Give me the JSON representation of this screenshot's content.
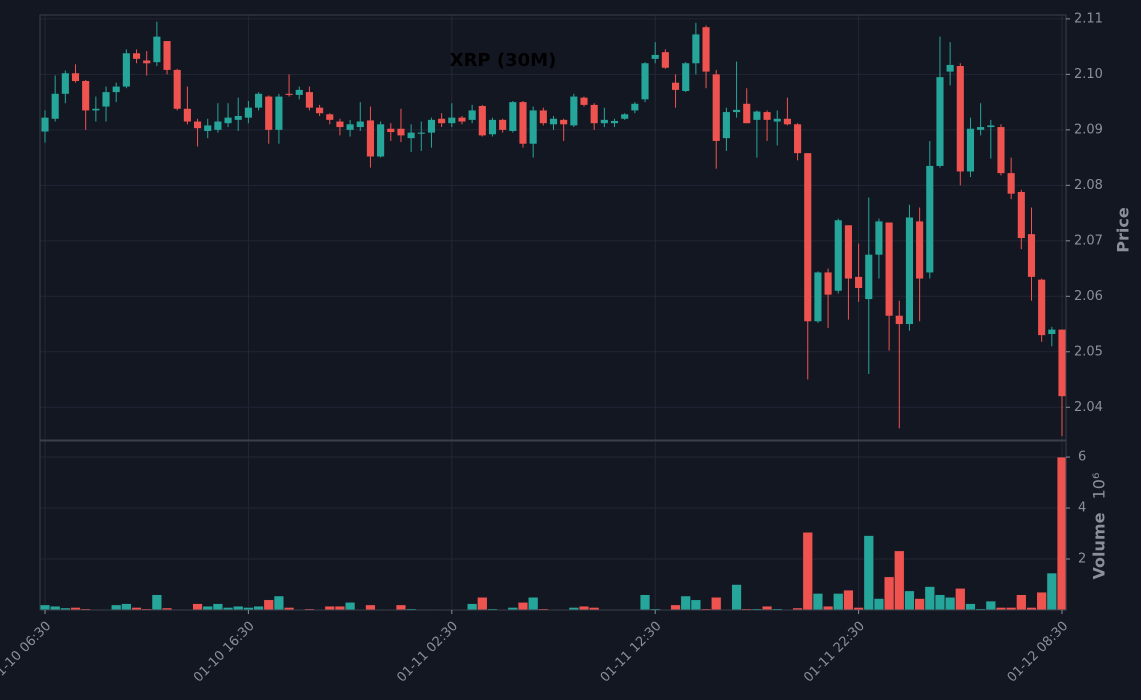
{
  "chart_data": {
    "type": "candlestick",
    "title": "XRP (30M)",
    "ylabel": "Price",
    "y2label": "Volume",
    "y2label_scale": "10⁶",
    "up_color": "#26a69a",
    "down_color": "#ef5350",
    "grid": true,
    "x": [
      "01-10 06:30",
      "01-10 07:00",
      "01-10 07:30",
      "01-10 08:00",
      "01-10 08:30",
      "01-10 09:00",
      "01-10 09:30",
      "01-10 10:00",
      "01-10 10:30",
      "01-10 11:00",
      "01-10 11:30",
      "01-10 12:00",
      "01-10 12:30",
      "01-10 13:00",
      "01-10 13:30",
      "01-10 14:00",
      "01-10 14:30",
      "01-10 15:00",
      "01-10 15:30",
      "01-10 16:00",
      "01-10 16:30",
      "01-10 17:00",
      "01-10 17:30",
      "01-10 18:00",
      "01-10 18:30",
      "01-10 19:00",
      "01-10 19:30",
      "01-10 20:00",
      "01-10 20:30",
      "01-10 21:00",
      "01-10 21:30",
      "01-10 22:00",
      "01-10 22:30",
      "01-10 23:00",
      "01-10 23:30",
      "01-11 00:00",
      "01-11 00:30",
      "01-11 01:00",
      "01-11 01:30",
      "01-11 02:00",
      "01-11 02:30",
      "01-11 03:00",
      "01-11 03:30",
      "01-11 04:00",
      "01-11 04:30",
      "01-11 05:00",
      "01-11 05:30",
      "01-11 06:00",
      "01-11 06:30",
      "01-11 07:00",
      "01-11 07:30",
      "01-11 08:00",
      "01-11 08:30",
      "01-11 09:00",
      "01-11 09:30",
      "01-11 10:00",
      "01-11 10:30",
      "01-11 11:00",
      "01-11 11:30",
      "01-11 12:00",
      "01-11 12:30",
      "01-11 13:00",
      "01-11 13:30",
      "01-11 14:00",
      "01-11 14:30",
      "01-11 15:00",
      "01-11 15:30",
      "01-11 16:00",
      "01-11 16:30",
      "01-11 17:00",
      "01-11 17:30",
      "01-11 18:00",
      "01-11 18:30",
      "01-11 19:00",
      "01-11 19:30",
      "01-11 20:00",
      "01-11 20:30",
      "01-11 21:00",
      "01-11 21:30",
      "01-11 22:00",
      "01-11 22:30",
      "01-11 23:00",
      "01-11 23:30",
      "01-12 00:00",
      "01-12 00:30",
      "01-12 01:00",
      "01-12 01:30",
      "01-12 02:00",
      "01-12 02:30",
      "01-12 03:00",
      "01-12 03:30",
      "01-12 04:00",
      "01-12 04:30",
      "01-12 05:00",
      "01-12 05:30",
      "01-12 06:00",
      "01-12 06:30",
      "01-12 07:00",
      "01-12 07:30",
      "01-12 08:00",
      "01-12 08:30"
    ],
    "xticks": [
      "01-10 06:30",
      "01-10 16:30",
      "01-11 02:30",
      "01-11 12:30",
      "01-11 22:30",
      "01-12 08:30"
    ],
    "open": [
      2.0897,
      2.092,
      2.0965,
      2.1002,
      2.0988,
      2.0935,
      2.0942,
      2.0968,
      2.0978,
      2.1038,
      2.1025,
      2.1022,
      2.106,
      2.1008,
      2.0938,
      2.0915,
      2.0898,
      2.09,
      2.0912,
      2.0918,
      2.0922,
      2.094,
      2.096,
      2.09,
      2.0965,
      2.0963,
      2.0968,
      2.094,
      2.0928,
      2.0915,
      2.09,
      2.0905,
      2.0917,
      2.0852,
      2.0902,
      2.0902,
      2.0885,
      2.0893,
      2.0895,
      2.092,
      2.0912,
      2.0922,
      2.0918,
      2.0943,
      2.0892,
      2.0918,
      2.0898,
      2.095,
      2.0875,
      2.0935,
      2.091,
      2.0918,
      2.0908,
      2.0958,
      2.0945,
      2.0912,
      2.0912,
      2.092,
      2.0935,
      2.0955,
      2.1028,
      2.104,
      2.0985,
      2.097,
      2.102,
      2.1085,
      2.1,
      2.0885,
      2.0932,
      2.0947,
      2.0918,
      2.0932,
      2.0915,
      2.092,
      2.091,
      2.0858,
      2.0555,
      2.0643,
      2.061,
      2.0728,
      2.0635,
      2.0595,
      2.0675,
      2.0733,
      2.0565,
      2.055,
      2.0735,
      2.0643,
      2.0835,
      2.1005,
      2.1015,
      2.0825,
      2.09,
      2.0905,
      2.0905,
      2.0822,
      2.0788,
      2.0712,
      2.063,
      2.0532,
      2.054
    ],
    "high": [
      2.0935,
      2.0998,
      2.1007,
      2.1018,
      2.099,
      2.096,
      2.0978,
      2.0985,
      2.1045,
      2.1045,
      2.1042,
      2.1095,
      2.106,
      2.101,
      2.0978,
      2.092,
      2.092,
      2.0948,
      2.0948,
      2.0958,
      2.0952,
      2.0968,
      2.0962,
      2.0965,
      2.1,
      2.0978,
      2.0978,
      2.0945,
      2.093,
      2.092,
      2.0918,
      2.095,
      2.0942,
      2.0915,
      2.0912,
      2.0938,
      2.091,
      2.0915,
      2.0922,
      2.093,
      2.0948,
      2.0925,
      2.0945,
      2.0945,
      2.0922,
      2.092,
      2.0952,
      2.0952,
      2.0942,
      2.094,
      2.0925,
      2.092,
      2.0965,
      2.096,
      2.0948,
      2.094,
      2.092,
      2.093,
      2.095,
      2.1022,
      2.1058,
      2.1045,
      2.1,
      2.1022,
      2.1093,
      2.1088,
      2.1008,
      2.094,
      2.1023,
      2.0975,
      2.0935,
      2.0935,
      2.0935,
      2.0958,
      2.0912,
      2.0858,
      2.0645,
      2.065,
      2.074,
      2.0728,
      2.0695,
      2.0778,
      2.074,
      2.0733,
      2.0592,
      2.0765,
      2.076,
      2.088,
      2.1068,
      2.1058,
      2.102,
      2.0922,
      2.0948,
      2.0918,
      2.091,
      2.085,
      2.0792,
      2.076,
      2.0632,
      2.0545,
      2.054
    ],
    "low": [
      2.0877,
      2.0915,
      2.0948,
      2.0985,
      2.09,
      2.0915,
      2.0915,
      2.095,
      2.0975,
      2.102,
      2.0998,
      2.1015,
      2.1,
      2.0935,
      2.091,
      2.087,
      2.0885,
      2.0895,
      2.0905,
      2.0898,
      2.0912,
      2.0935,
      2.0875,
      2.0875,
      2.096,
      2.0955,
      2.0935,
      2.0925,
      2.091,
      2.089,
      2.0888,
      2.0898,
      2.0832,
      2.085,
      2.088,
      2.0878,
      2.086,
      2.0862,
      2.0868,
      2.0905,
      2.0905,
      2.091,
      2.0912,
      2.0888,
      2.0888,
      2.0895,
      2.0895,
      2.0868,
      2.085,
      2.0908,
      2.09,
      2.088,
      2.0905,
      2.0942,
      2.09,
      2.0905,
      2.0905,
      2.0918,
      2.093,
      2.095,
      2.102,
      2.101,
      2.094,
      2.0968,
      2.1,
      2.0975,
      2.083,
      2.0862,
      2.0922,
      2.0912,
      2.085,
      2.088,
      2.0872,
      2.0908,
      2.0845,
      2.045,
      2.0552,
      2.0543,
      2.0605,
      2.0558,
      2.059,
      2.046,
      2.0632,
      2.0502,
      2.0362,
      2.0538,
      2.0555,
      2.0632,
      2.0832,
      2.098,
      2.08,
      2.0815,
      2.089,
      2.0848,
      2.0818,
      2.0775,
      2.0685,
      2.0592,
      2.0518,
      2.051,
      2.0348
    ],
    "close": [
      2.0922,
      2.0965,
      2.1002,
      2.0988,
      2.0935,
      2.0938,
      2.0968,
      2.0978,
      2.1038,
      2.1028,
      2.102,
      2.1068,
      2.1008,
      2.0938,
      2.0915,
      2.0903,
      2.0908,
      2.0915,
      2.0922,
      2.0925,
      2.094,
      2.0965,
      2.09,
      2.096,
      2.0963,
      2.0972,
      2.094,
      2.093,
      2.0918,
      2.0905,
      2.091,
      2.0915,
      2.0852,
      2.091,
      2.0896,
      2.089,
      2.0895,
      2.0895,
      2.0918,
      2.0912,
      2.0922,
      2.0915,
      2.0935,
      2.089,
      2.0918,
      2.09,
      2.095,
      2.0875,
      2.0935,
      2.0912,
      2.092,
      2.091,
      2.096,
      2.0945,
      2.0912,
      2.0918,
      2.0916,
      2.0928,
      2.0947,
      2.102,
      2.1035,
      2.1012,
      2.0972,
      2.102,
      2.1072,
      2.1005,
      2.088,
      2.0932,
      2.0936,
      2.0912,
      2.0933,
      2.0918,
      2.092,
      2.091,
      2.0858,
      2.0555,
      2.0643,
      2.0603,
      2.0737,
      2.0632,
      2.0615,
      2.0675,
      2.0735,
      2.0565,
      2.055,
      2.0742,
      2.0632,
      2.0835,
      2.0995,
      2.1017,
      2.0825,
      2.0902,
      2.0905,
      2.0908,
      2.0822,
      2.0785,
      2.0705,
      2.0635,
      2.053,
      2.054,
      2.042
    ],
    "volume": [
      0.2,
      0.15,
      0.08,
      0.1,
      0.05,
      0.02,
      0.02,
      0.2,
      0.25,
      0.1,
      0.05,
      0.6,
      0.08,
      0.03,
      0.02,
      0.25,
      0.15,
      0.25,
      0.1,
      0.15,
      0.1,
      0.15,
      0.4,
      0.55,
      0.1,
      0.02,
      0.05,
      0.02,
      0.15,
      0.15,
      0.3,
      0.02,
      0.2,
      0.02,
      0.02,
      0.2,
      0.05,
      0.03,
      0.03,
      0.02,
      0.02,
      0.02,
      0.25,
      0.5,
      0.05,
      0.02,
      0.1,
      0.3,
      0.5,
      0.05,
      0.02,
      0.02,
      0.1,
      0.15,
      0.1,
      0.02,
      0.02,
      0.02,
      0.02,
      0.6,
      0.05,
      0.02,
      0.2,
      0.55,
      0.4,
      0.05,
      0.5,
      0.02,
      1.0,
      0.05,
      0.05,
      0.15,
      0.05,
      0.02,
      0.08,
      3.05,
      0.65,
      0.15,
      0.65,
      0.78,
      0.1,
      2.92,
      0.45,
      1.3,
      2.32,
      0.75,
      0.45,
      0.92,
      0.6,
      0.5,
      0.85,
      0.25,
      0.05,
      0.35,
      0.1,
      0.1,
      0.6,
      0.1,
      0.7,
      1.45,
      6.0
    ],
    "ylim": [
      2.0341,
      2.1107
    ],
    "yticks": [
      2.04,
      2.05,
      2.06,
      2.07,
      2.08,
      2.09,
      {
        "value": 2.1,
        "label": "2.10"
      },
      2.11
    ],
    "y2lim": [
      0,
      6.63
    ],
    "y2ticks": [
      2,
      4,
      6
    ]
  }
}
